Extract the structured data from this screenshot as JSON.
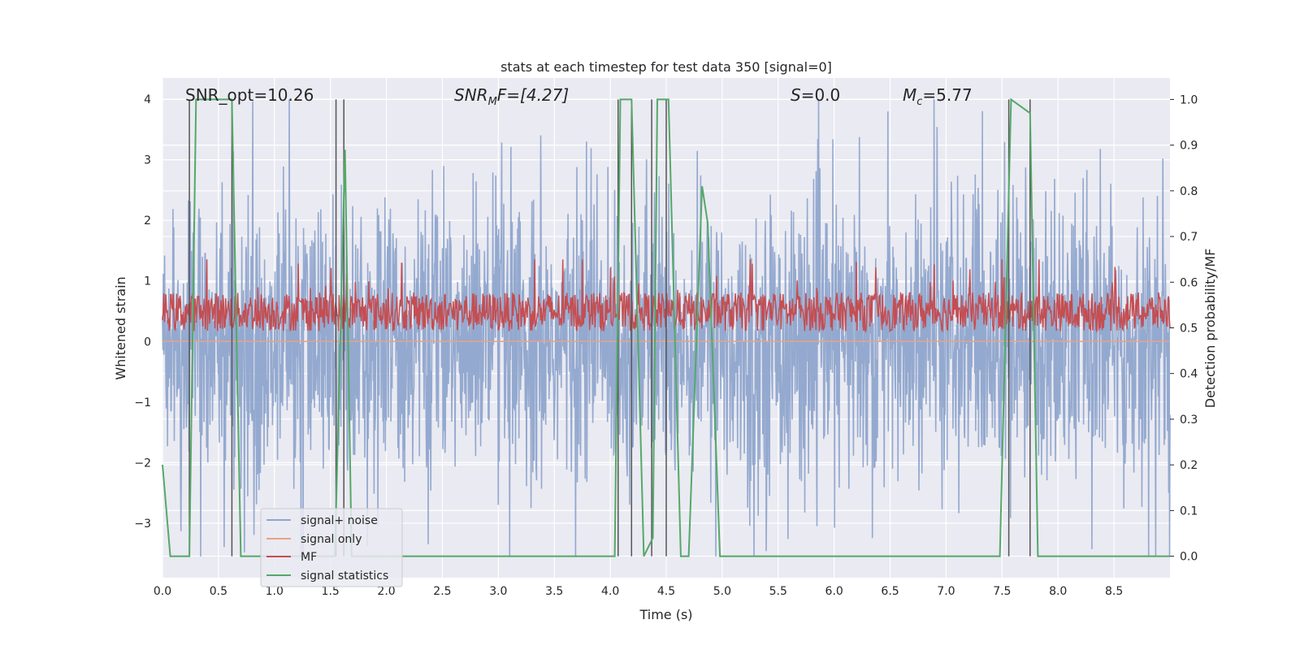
{
  "chart_data": {
    "type": "line",
    "title": "stats at each timestep for test data 350 [signal=0]",
    "xlabel": "Time (s)",
    "ylabel": "Whitened strain",
    "ylabel_right": "Detection probability/MF",
    "xlim": [
      0.0,
      9.0
    ],
    "ylim": [
      -3.9,
      4.35
    ],
    "ylim_right": [
      -0.047,
      1.047
    ],
    "xticks": [
      "0.0",
      "0.5",
      "1.0",
      "1.5",
      "2.0",
      "2.5",
      "3.0",
      "3.5",
      "4.0",
      "4.5",
      "5.0",
      "5.5",
      "6.0",
      "6.5",
      "7.0",
      "7.5",
      "8.0",
      "8.5"
    ],
    "yticks": [
      "4",
      "3",
      "2",
      "1",
      "0",
      "−1",
      "−2",
      "−3"
    ],
    "yticks_right": [
      "1.0",
      "0.9",
      "0.8",
      "0.7",
      "0.6",
      "0.5",
      "0.4",
      "0.3",
      "0.2",
      "0.1",
      "0.0"
    ],
    "grid": true,
    "legend_position": "lower-left",
    "annotations": {
      "snr_opt": "SNR_opt=10.26",
      "snr_mf_prefix": "SNR",
      "snr_mf_sub": "M",
      "snr_mf_suffix": "F=[4.27]",
      "s_prefix": "S",
      "s_suffix": "=0.0",
      "mc_prefix": "M",
      "mc_sub": "c",
      "mc_suffix": "=5.77"
    },
    "series": [
      {
        "name": "signal+ noise",
        "color": "#8fa5cc",
        "style": "noise, amplitude ~±2.3 with peaks to ±4"
      },
      {
        "name": "signal only",
        "color": "#e8a383",
        "values_constant": 0.0
      },
      {
        "name": "MF",
        "color": "#c44e52",
        "style": "band on right axis 0.49–0.58, peaks ~0.65"
      },
      {
        "name": "signal statistics",
        "color": "#55a868",
        "x": [
          0.0,
          0.07,
          0.24,
          0.3,
          0.62,
          0.7,
          1.54,
          1.63,
          1.69,
          4.04,
          4.09,
          4.19,
          4.3,
          4.38,
          4.42,
          4.52,
          4.63,
          4.7,
          4.82,
          4.87,
          4.98,
          5.05,
          7.48,
          7.58,
          7.75,
          7.82,
          9.0
        ],
        "y": [
          0.2,
          0.0,
          0.0,
          1.0,
          1.0,
          0.0,
          0.0,
          0.89,
          0.0,
          0.0,
          1.0,
          1.0,
          0.0,
          0.04,
          1.0,
          1.0,
          0.0,
          0.0,
          0.81,
          0.73,
          0.0,
          0.0,
          0.0,
          1.0,
          0.97,
          0.0,
          0.0
        ]
      }
    ],
    "vertical_lines_x": [
      0.24,
      0.62,
      1.55,
      1.62,
      4.07,
      4.19,
      4.37,
      4.5,
      7.56,
      7.75
    ]
  }
}
